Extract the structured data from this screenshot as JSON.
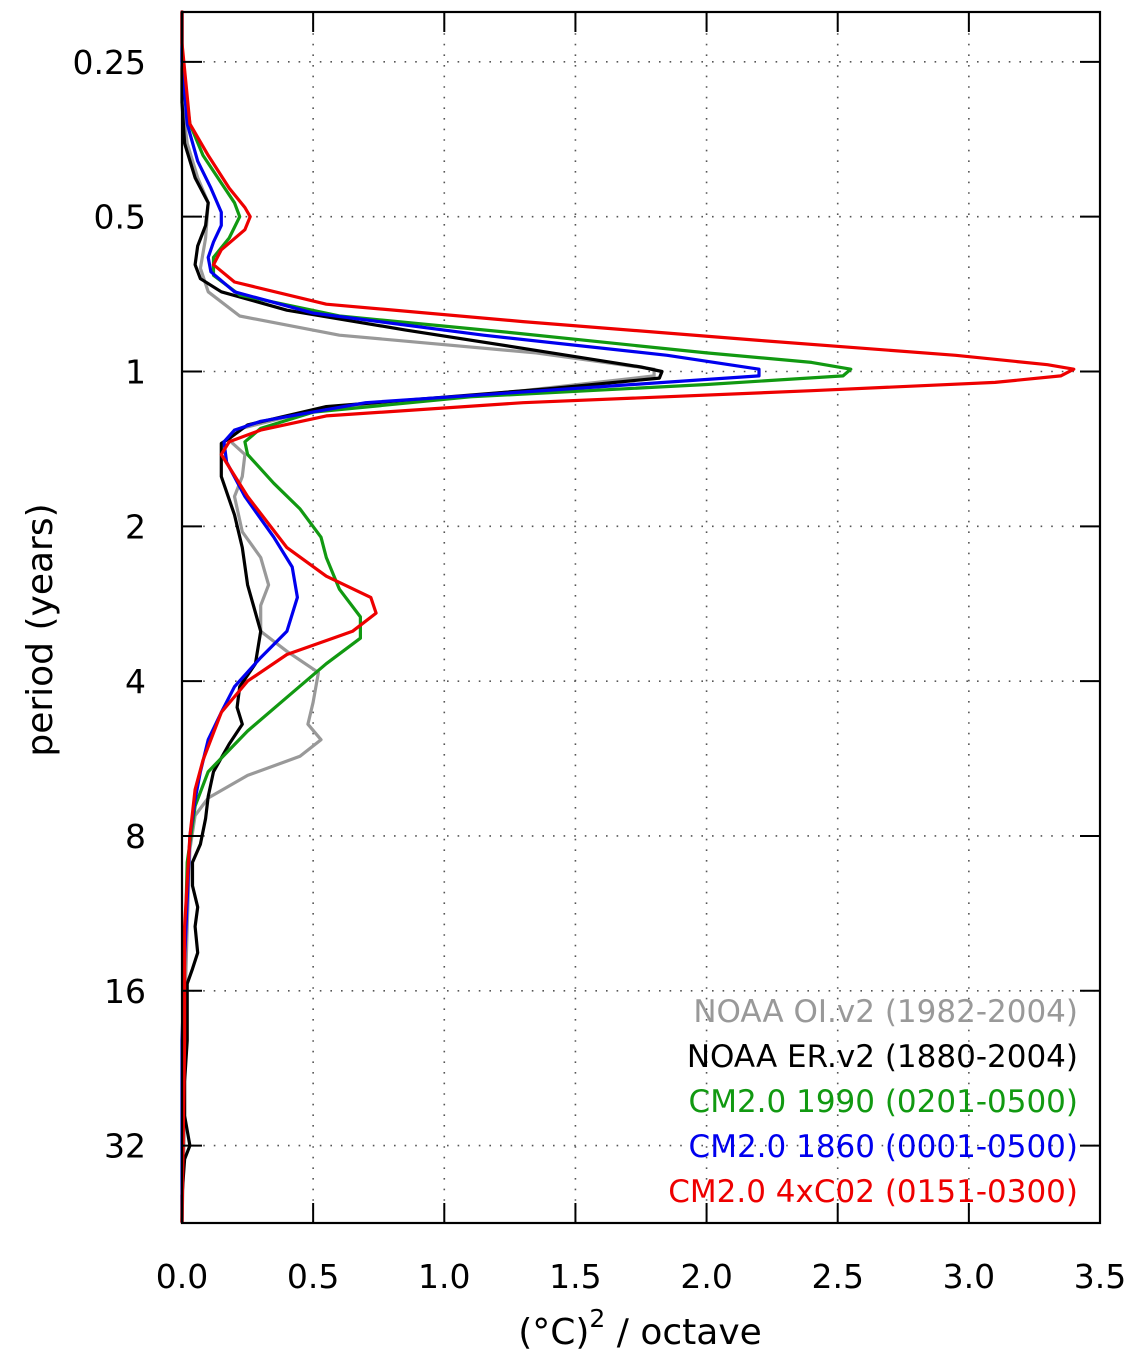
{
  "chart_data": {
    "type": "line",
    "xlabel": "(°C)",
    "xlabel_superscript": "2",
    "xlabel_suffix": " / octave",
    "ylabel": "period (years)",
    "xlim": [
      0.0,
      3.5
    ],
    "x_ticks": [
      0.0,
      0.5,
      1.0,
      1.5,
      2.0,
      2.5,
      3.0,
      3.5
    ],
    "x_tick_labels": [
      "0.0",
      "0.5",
      "1.0",
      "1.5",
      "2.0",
      "2.5",
      "3.0",
      "3.5"
    ],
    "y_scale": "log2",
    "y_inverted": true,
    "ylim": [
      0.2,
      45.25
    ],
    "y_ticks": [
      0.25,
      0.5,
      1,
      2,
      4,
      8,
      16,
      32
    ],
    "y_tick_labels": [
      "0.25",
      "0.5",
      "1",
      "2",
      "4",
      "8",
      "16",
      "32"
    ],
    "grid": true,
    "grid_style": "dotted",
    "legend_position": "bottom-right",
    "series": [
      {
        "name": "NOAA OI.v2 (1982-2004)",
        "color": "#999999",
        "points": [
          [
            0.0,
            0.2
          ],
          [
            0.0,
            0.3
          ],
          [
            0.02,
            0.36
          ],
          [
            0.06,
            0.42
          ],
          [
            0.1,
            0.47
          ],
          [
            0.09,
            0.55
          ],
          [
            0.07,
            0.63
          ],
          [
            0.1,
            0.7
          ],
          [
            0.22,
            0.78
          ],
          [
            0.6,
            0.85
          ],
          [
            1.35,
            0.92
          ],
          [
            1.8,
            0.99
          ],
          [
            1.8,
            1.02
          ],
          [
            1.3,
            1.09
          ],
          [
            0.5,
            1.19
          ],
          [
            0.2,
            1.3
          ],
          [
            0.18,
            1.36
          ],
          [
            0.24,
            1.45
          ],
          [
            0.23,
            1.6
          ],
          [
            0.2,
            1.75
          ],
          [
            0.23,
            2.05
          ],
          [
            0.3,
            2.3
          ],
          [
            0.33,
            2.6
          ],
          [
            0.3,
            2.85
          ],
          [
            0.3,
            3.2
          ],
          [
            0.4,
            3.5
          ],
          [
            0.52,
            3.85
          ],
          [
            0.5,
            4.4
          ],
          [
            0.48,
            4.85
          ],
          [
            0.53,
            5.2
          ],
          [
            0.45,
            5.6
          ],
          [
            0.25,
            6.1
          ],
          [
            0.1,
            6.75
          ],
          [
            0.05,
            7.3
          ],
          [
            0.03,
            8.5
          ],
          [
            0.02,
            12
          ],
          [
            0.01,
            18
          ],
          [
            0.01,
            28
          ],
          [
            0.0,
            45
          ]
        ]
      },
      {
        "name": "NOAA ER.v2 (1880-2004)",
        "color": "#000000",
        "points": [
          [
            0.0,
            0.2
          ],
          [
            0.0,
            0.3
          ],
          [
            0.01,
            0.36
          ],
          [
            0.05,
            0.42
          ],
          [
            0.1,
            0.47
          ],
          [
            0.09,
            0.52
          ],
          [
            0.06,
            0.57
          ],
          [
            0.05,
            0.62
          ],
          [
            0.07,
            0.66
          ],
          [
            0.15,
            0.7
          ],
          [
            0.4,
            0.76
          ],
          [
            0.85,
            0.83
          ],
          [
            1.35,
            0.91
          ],
          [
            1.75,
            0.98
          ],
          [
            1.83,
            1.0
          ],
          [
            1.82,
            1.03
          ],
          [
            1.4,
            1.08
          ],
          [
            0.55,
            1.17
          ],
          [
            0.25,
            1.27
          ],
          [
            0.18,
            1.35
          ],
          [
            0.15,
            1.38
          ],
          [
            0.15,
            1.6
          ],
          [
            0.2,
            1.9
          ],
          [
            0.23,
            2.2
          ],
          [
            0.25,
            2.6
          ],
          [
            0.3,
            3.2
          ],
          [
            0.28,
            3.7
          ],
          [
            0.22,
            4.1
          ],
          [
            0.21,
            4.5
          ],
          [
            0.23,
            4.85
          ],
          [
            0.18,
            5.3
          ],
          [
            0.12,
            6.0
          ],
          [
            0.1,
            6.7
          ],
          [
            0.09,
            7.4
          ],
          [
            0.07,
            8.3
          ],
          [
            0.04,
            9.0
          ],
          [
            0.04,
            10.0
          ],
          [
            0.06,
            11.0
          ],
          [
            0.05,
            12.0
          ],
          [
            0.06,
            13.5
          ],
          [
            0.04,
            14.5
          ],
          [
            0.02,
            15.5
          ],
          [
            0.02,
            20
          ],
          [
            0.01,
            24
          ],
          [
            0.01,
            28
          ],
          [
            0.03,
            32
          ],
          [
            0.01,
            34
          ],
          [
            0.0,
            40
          ],
          [
            0.0,
            45
          ]
        ]
      },
      {
        "name": "CM2.0 1990 (0201-0500)",
        "color": "#119911",
        "points": [
          [
            0.0,
            0.2
          ],
          [
            0.0,
            0.25
          ],
          [
            0.03,
            0.33
          ],
          [
            0.08,
            0.38
          ],
          [
            0.15,
            0.43
          ],
          [
            0.2,
            0.47
          ],
          [
            0.22,
            0.5
          ],
          [
            0.18,
            0.55
          ],
          [
            0.12,
            0.6
          ],
          [
            0.12,
            0.65
          ],
          [
            0.22,
            0.71
          ],
          [
            0.6,
            0.78
          ],
          [
            1.25,
            0.84
          ],
          [
            2.0,
            0.92
          ],
          [
            2.4,
            0.96
          ],
          [
            2.55,
            0.99
          ],
          [
            2.52,
            1.02
          ],
          [
            2.0,
            1.06
          ],
          [
            1.1,
            1.12
          ],
          [
            0.5,
            1.2
          ],
          [
            0.3,
            1.29
          ],
          [
            0.24,
            1.37
          ],
          [
            0.25,
            1.45
          ],
          [
            0.35,
            1.65
          ],
          [
            0.45,
            1.85
          ],
          [
            0.53,
            2.1
          ],
          [
            0.55,
            2.3
          ],
          [
            0.6,
            2.65
          ],
          [
            0.68,
            3.0
          ],
          [
            0.68,
            3.3
          ],
          [
            0.55,
            3.7
          ],
          [
            0.4,
            4.3
          ],
          [
            0.25,
            5.0
          ],
          [
            0.1,
            6.0
          ],
          [
            0.05,
            7.0
          ],
          [
            0.02,
            9.0
          ],
          [
            0.01,
            14
          ],
          [
            0.005,
            20
          ],
          [
            0.0,
            45
          ]
        ]
      },
      {
        "name": "CM2.0 1860 (0001-0500)",
        "color": "#0000ee",
        "points": [
          [
            0.0,
            0.2
          ],
          [
            0.0,
            0.25
          ],
          [
            0.02,
            0.33
          ],
          [
            0.06,
            0.39
          ],
          [
            0.11,
            0.44
          ],
          [
            0.15,
            0.49
          ],
          [
            0.15,
            0.52
          ],
          [
            0.12,
            0.56
          ],
          [
            0.1,
            0.6
          ],
          [
            0.11,
            0.64
          ],
          [
            0.2,
            0.7
          ],
          [
            0.5,
            0.77
          ],
          [
            1.15,
            0.85
          ],
          [
            1.85,
            0.93
          ],
          [
            2.2,
            0.99
          ],
          [
            2.2,
            1.02
          ],
          [
            1.6,
            1.07
          ],
          [
            0.7,
            1.15
          ],
          [
            0.3,
            1.25
          ],
          [
            0.2,
            1.3
          ],
          [
            0.16,
            1.37
          ],
          [
            0.17,
            1.5
          ],
          [
            0.24,
            1.75
          ],
          [
            0.35,
            2.1
          ],
          [
            0.42,
            2.4
          ],
          [
            0.44,
            2.75
          ],
          [
            0.4,
            3.2
          ],
          [
            0.3,
            3.6
          ],
          [
            0.2,
            4.1
          ],
          [
            0.15,
            4.6
          ],
          [
            0.1,
            5.2
          ],
          [
            0.07,
            6.0
          ],
          [
            0.05,
            6.8
          ],
          [
            0.03,
            8.0
          ],
          [
            0.01,
            14
          ],
          [
            0.0,
            20
          ],
          [
            0.0,
            45
          ]
        ]
      },
      {
        "name": "CM2.0 4xC02 (0151-0300)",
        "color": "#ee0000",
        "points": [
          [
            0.0,
            0.2
          ],
          [
            0.0,
            0.23
          ],
          [
            0.03,
            0.33
          ],
          [
            0.1,
            0.38
          ],
          [
            0.18,
            0.44
          ],
          [
            0.24,
            0.48
          ],
          [
            0.26,
            0.5
          ],
          [
            0.24,
            0.53
          ],
          [
            0.15,
            0.58
          ],
          [
            0.12,
            0.62
          ],
          [
            0.2,
            0.67
          ],
          [
            0.55,
            0.74
          ],
          [
            1.3,
            0.8
          ],
          [
            2.2,
            0.87
          ],
          [
            2.95,
            0.93
          ],
          [
            3.3,
            0.97
          ],
          [
            3.4,
            0.99
          ],
          [
            3.35,
            1.02
          ],
          [
            3.1,
            1.05
          ],
          [
            2.4,
            1.09
          ],
          [
            1.3,
            1.15
          ],
          [
            0.55,
            1.22
          ],
          [
            0.3,
            1.3
          ],
          [
            0.18,
            1.37
          ],
          [
            0.15,
            1.45
          ],
          [
            0.25,
            1.75
          ],
          [
            0.4,
            2.2
          ],
          [
            0.55,
            2.5
          ],
          [
            0.72,
            2.75
          ],
          [
            0.74,
            2.95
          ],
          [
            0.65,
            3.2
          ],
          [
            0.4,
            3.55
          ],
          [
            0.25,
            4.0
          ],
          [
            0.15,
            4.6
          ],
          [
            0.08,
            5.7
          ],
          [
            0.05,
            6.5
          ],
          [
            0.03,
            8.0
          ],
          [
            0.01,
            12
          ],
          [
            0.01,
            20
          ],
          [
            0.0,
            45
          ]
        ]
      }
    ],
    "legend": [
      {
        "label": "NOAA OI.v2 (1982-2004)",
        "color": "#999999"
      },
      {
        "label": "NOAA ER.v2 (1880-2004)",
        "color": "#000000"
      },
      {
        "label": "CM2.0 1990 (0201-0500)",
        "color": "#119911"
      },
      {
        "label": "CM2.0 1860 (0001-0500)",
        "color": "#0000ee"
      },
      {
        "label": "CM2.0 4xC02 (0151-0300)",
        "color": "#ee0000"
      }
    ]
  }
}
